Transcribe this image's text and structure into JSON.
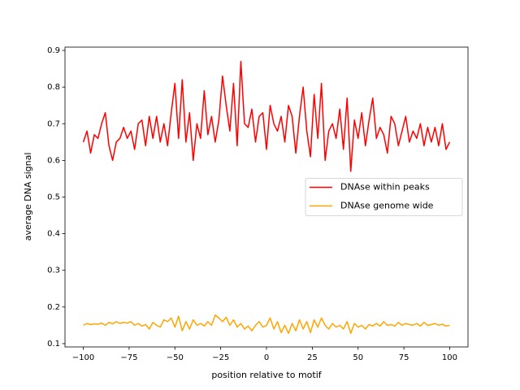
{
  "chart_data": {
    "type": "line",
    "x_label": "position relative to motif",
    "y_label": "average DNA signal",
    "x": [
      -100,
      -98,
      -96,
      -94,
      -92,
      -90,
      -88,
      -86,
      -84,
      -82,
      -80,
      -78,
      -76,
      -74,
      -72,
      -70,
      -68,
      -66,
      -64,
      -62,
      -60,
      -58,
      -56,
      -54,
      -52,
      -50,
      -48,
      -46,
      -44,
      -42,
      -40,
      -38,
      -36,
      -34,
      -32,
      -30,
      -28,
      -26,
      -24,
      -22,
      -20,
      -18,
      -16,
      -14,
      -12,
      -10,
      -8,
      -6,
      -4,
      -2,
      0,
      2,
      4,
      6,
      8,
      10,
      12,
      14,
      16,
      18,
      20,
      22,
      24,
      26,
      28,
      30,
      32,
      34,
      36,
      38,
      40,
      42,
      44,
      46,
      48,
      50,
      52,
      54,
      56,
      58,
      60,
      62,
      64,
      66,
      68,
      70,
      72,
      74,
      76,
      78,
      80,
      82,
      84,
      86,
      88,
      90,
      92,
      94,
      96,
      98,
      100
    ],
    "series": [
      {
        "name": "DNAse within peaks",
        "color": "#ff0000",
        "values": [
          0.65,
          0.68,
          0.62,
          0.67,
          0.66,
          0.7,
          0.73,
          0.64,
          0.6,
          0.65,
          0.66,
          0.69,
          0.66,
          0.68,
          0.63,
          0.7,
          0.71,
          0.64,
          0.72,
          0.66,
          0.72,
          0.65,
          0.7,
          0.64,
          0.73,
          0.81,
          0.66,
          0.82,
          0.65,
          0.73,
          0.6,
          0.7,
          0.66,
          0.79,
          0.67,
          0.72,
          0.65,
          0.71,
          0.83,
          0.75,
          0.68,
          0.81,
          0.64,
          0.87,
          0.7,
          0.69,
          0.74,
          0.65,
          0.72,
          0.73,
          0.63,
          0.75,
          0.7,
          0.68,
          0.72,
          0.65,
          0.75,
          0.72,
          0.62,
          0.72,
          0.8,
          0.68,
          0.61,
          0.78,
          0.66,
          0.81,
          0.6,
          0.68,
          0.7,
          0.66,
          0.74,
          0.63,
          0.77,
          0.57,
          0.71,
          0.66,
          0.73,
          0.64,
          0.71,
          0.77,
          0.66,
          0.69,
          0.67,
          0.62,
          0.72,
          0.7,
          0.64,
          0.68,
          0.72,
          0.65,
          0.68,
          0.66,
          0.7,
          0.64,
          0.69,
          0.65,
          0.69,
          0.64,
          0.7,
          0.63,
          0.65
        ]
      },
      {
        "name": "DNAse genome wide",
        "color": "#ffa500",
        "values": [
          0.15,
          0.155,
          0.152,
          0.154,
          0.153,
          0.156,
          0.15,
          0.158,
          0.154,
          0.16,
          0.155,
          0.158,
          0.156,
          0.16,
          0.15,
          0.155,
          0.148,
          0.152,
          0.14,
          0.158,
          0.15,
          0.145,
          0.165,
          0.16,
          0.17,
          0.145,
          0.175,
          0.135,
          0.16,
          0.14,
          0.165,
          0.15,
          0.155,
          0.148,
          0.16,
          0.15,
          0.178,
          0.17,
          0.16,
          0.172,
          0.15,
          0.165,
          0.145,
          0.155,
          0.14,
          0.148,
          0.135,
          0.15,
          0.16,
          0.145,
          0.15,
          0.17,
          0.14,
          0.16,
          0.13,
          0.15,
          0.128,
          0.155,
          0.135,
          0.165,
          0.14,
          0.16,
          0.13,
          0.165,
          0.145,
          0.17,
          0.15,
          0.14,
          0.155,
          0.145,
          0.15,
          0.14,
          0.16,
          0.128,
          0.155,
          0.145,
          0.15,
          0.14,
          0.152,
          0.148,
          0.155,
          0.148,
          0.16,
          0.15,
          0.152,
          0.148,
          0.158,
          0.15,
          0.155,
          0.152,
          0.15,
          0.155,
          0.148,
          0.158,
          0.15,
          0.152,
          0.155,
          0.15,
          0.153,
          0.148,
          0.15
        ]
      }
    ],
    "xlim": [
      -110,
      110
    ],
    "ylim": [
      0.091,
      0.909
    ],
    "xticks": [
      {
        "value": -100,
        "label": "−100"
      },
      {
        "value": -75,
        "label": "−75"
      },
      {
        "value": -50,
        "label": "−50"
      },
      {
        "value": -25,
        "label": "−25"
      },
      0,
      25,
      50,
      75,
      100
    ],
    "yticks": [
      0.1,
      0.2,
      0.3,
      0.4,
      0.5,
      0.6,
      0.7,
      0.8,
      0.9
    ],
    "legend": "center right"
  }
}
